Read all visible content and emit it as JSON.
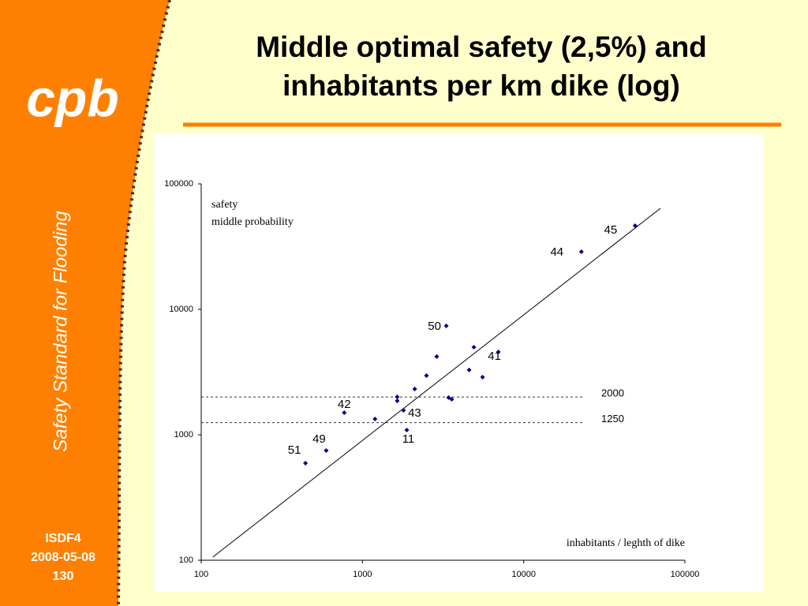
{
  "sidebar": {
    "logo": "cpb",
    "vertical": "Safety Standard for Flooding",
    "footer": [
      "ISDF4",
      "2008-05-08",
      "130"
    ]
  },
  "chart_data": {
    "type": "scatter",
    "title": [
      "Middle optimal safety (2,5%) and",
      "inhabitants per km dike (log)"
    ],
    "ylabel": [
      "safety",
      "middle probability"
    ],
    "xlabel": "inhabitants / leghth of dike",
    "x": [
      443,
      596,
      771,
      1196,
      1643,
      1643,
      1799,
      1883,
      2110,
      2496,
      2890,
      3311,
      3422,
      3580,
      4588,
      4911,
      5559,
      6966,
      22800,
      49100
    ],
    "y": [
      594,
      748,
      1500,
      1336,
      2005,
      1863,
      1567,
      1091,
      2316,
      2965,
      4198,
      7378,
      1977,
      1919,
      3283,
      4990,
      2878,
      4571,
      28770,
      46450
    ],
    "labels": [
      "51",
      "49",
      "42",
      null,
      null,
      null,
      "43",
      "11",
      null,
      null,
      null,
      "50",
      null,
      null,
      null,
      null,
      null,
      "41",
      "44",
      "45"
    ],
    "color": "#00008b",
    "trend_line": {
      "x": [
        118,
        70500
      ],
      "y": [
        106,
        63800
      ]
    },
    "hlines": [
      2000,
      1250
    ],
    "xscale": "log",
    "yscale": "log",
    "xlim": [
      100,
      100000
    ],
    "ylim": [
      100,
      100000
    ],
    "xticks": [
      100,
      1000,
      10000,
      100000
    ],
    "yticks": [
      100,
      1000,
      10000,
      100000
    ]
  }
}
